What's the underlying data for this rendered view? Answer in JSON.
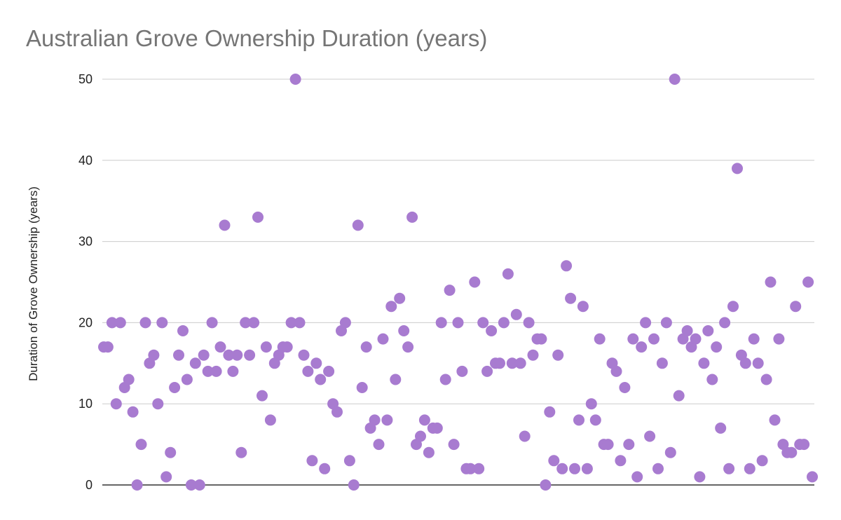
{
  "chart_data": {
    "type": "scatter",
    "title": "Australian Grove Ownership Duration (years)",
    "xlabel": "",
    "ylabel": "Duration of Grove Ownership (years)",
    "ylim": [
      0,
      50
    ],
    "yticks": [
      "0",
      "10",
      "20",
      "30",
      "40",
      "50"
    ],
    "grid": true,
    "legend": "none",
    "point_color": "#a87bd0",
    "values": [
      17,
      17,
      20,
      10,
      20,
      12,
      13,
      9,
      0,
      5,
      20,
      15,
      16,
      10,
      20,
      1,
      4,
      12,
      16,
      19,
      13,
      0,
      15,
      0,
      16,
      14,
      20,
      14,
      17,
      32,
      16,
      14,
      16,
      4,
      20,
      16,
      20,
      33,
      11,
      17,
      8,
      15,
      16,
      17,
      17,
      20,
      50,
      20,
      16,
      14,
      3,
      15,
      13,
      2,
      14,
      10,
      9,
      19,
      20,
      3,
      0,
      32,
      12,
      17,
      7,
      8,
      5,
      18,
      8,
      22,
      13,
      23,
      19,
      17,
      33,
      5,
      6,
      8,
      4,
      7,
      7,
      20,
      13,
      24,
      5,
      20,
      14,
      2,
      2,
      25,
      2,
      20,
      14,
      19,
      15,
      15,
      20,
      26,
      15,
      21,
      15,
      6,
      20,
      16,
      18,
      18,
      0,
      9,
      3,
      16,
      2,
      27,
      23,
      2,
      8,
      22,
      2,
      10,
      8,
      18,
      5,
      5,
      15,
      14,
      3,
      12,
      5,
      18,
      1,
      17,
      20,
      6,
      18,
      2,
      15,
      20,
      4,
      50,
      11,
      18,
      19,
      17,
      18,
      1,
      15,
      19,
      13,
      17,
      7,
      20,
      2,
      22,
      39,
      16,
      15,
      2,
      18,
      15,
      3,
      13,
      25,
      8,
      18,
      5,
      4,
      4,
      22,
      5,
      5,
      25,
      1
    ]
  }
}
